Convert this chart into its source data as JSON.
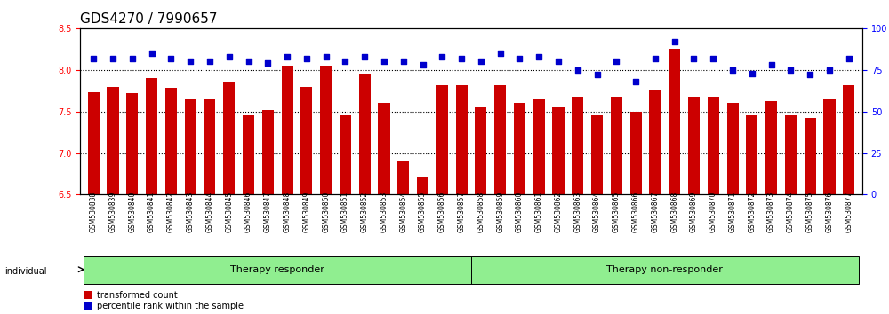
{
  "title": "GDS4270 / 7990657",
  "samples": [
    "GSM530838",
    "GSM530839",
    "GSM530840",
    "GSM530841",
    "GSM530842",
    "GSM530843",
    "GSM530844",
    "GSM530845",
    "GSM530846",
    "GSM530847",
    "GSM530848",
    "GSM530849",
    "GSM530850",
    "GSM530851",
    "GSM530852",
    "GSM530853",
    "GSM530854",
    "GSM530855",
    "GSM530856",
    "GSM530857",
    "GSM530858",
    "GSM530859",
    "GSM530860",
    "GSM530861",
    "GSM530862",
    "GSM530863",
    "GSM530864",
    "GSM530865",
    "GSM530866",
    "GSM530867",
    "GSM530868",
    "GSM530869",
    "GSM530870",
    "GSM530871",
    "GSM530872",
    "GSM530873",
    "GSM530874",
    "GSM530875",
    "GSM530876",
    "GSM530877"
  ],
  "bar_values": [
    7.73,
    7.8,
    7.72,
    7.9,
    7.78,
    7.65,
    7.65,
    7.85,
    7.45,
    7.52,
    8.05,
    7.8,
    8.05,
    7.45,
    7.95,
    7.6,
    6.9,
    6.72,
    7.82,
    7.82,
    7.55,
    7.82,
    7.6,
    7.65,
    7.55,
    7.68,
    7.45,
    7.68,
    7.5,
    7.75,
    8.25,
    7.68,
    7.68,
    7.6,
    7.45,
    7.62,
    7.45,
    7.42,
    7.65,
    7.82
  ],
  "dot_values": [
    82,
    82,
    82,
    85,
    82,
    80,
    80,
    83,
    80,
    79,
    83,
    82,
    83,
    80,
    83,
    80,
    80,
    78,
    83,
    82,
    80,
    85,
    82,
    83,
    80,
    75,
    72,
    80,
    68,
    82,
    92,
    82,
    82,
    75,
    73,
    78,
    75,
    72,
    75,
    82
  ],
  "groups": [
    {
      "label": "Therapy responder",
      "start": 0,
      "end": 20,
      "color": "#90EE90"
    },
    {
      "label": "Therapy non-responder",
      "start": 20,
      "end": 40,
      "color": "#90EE90"
    }
  ],
  "bar_color": "#CC0000",
  "dot_color": "#0000CC",
  "ymin": 6.5,
  "ylim_left": [
    6.5,
    8.5
  ],
  "ylim_right": [
    0,
    100
  ],
  "yticks_left": [
    6.5,
    7.0,
    7.5,
    8.0,
    8.5
  ],
  "yticks_right": [
    0,
    25,
    50,
    75,
    100
  ],
  "grid_yticks": [
    7.0,
    7.5,
    8.0
  ],
  "background_color": "#ffffff",
  "title_fontsize": 11,
  "tick_fontsize": 7,
  "label_fontsize": 8
}
